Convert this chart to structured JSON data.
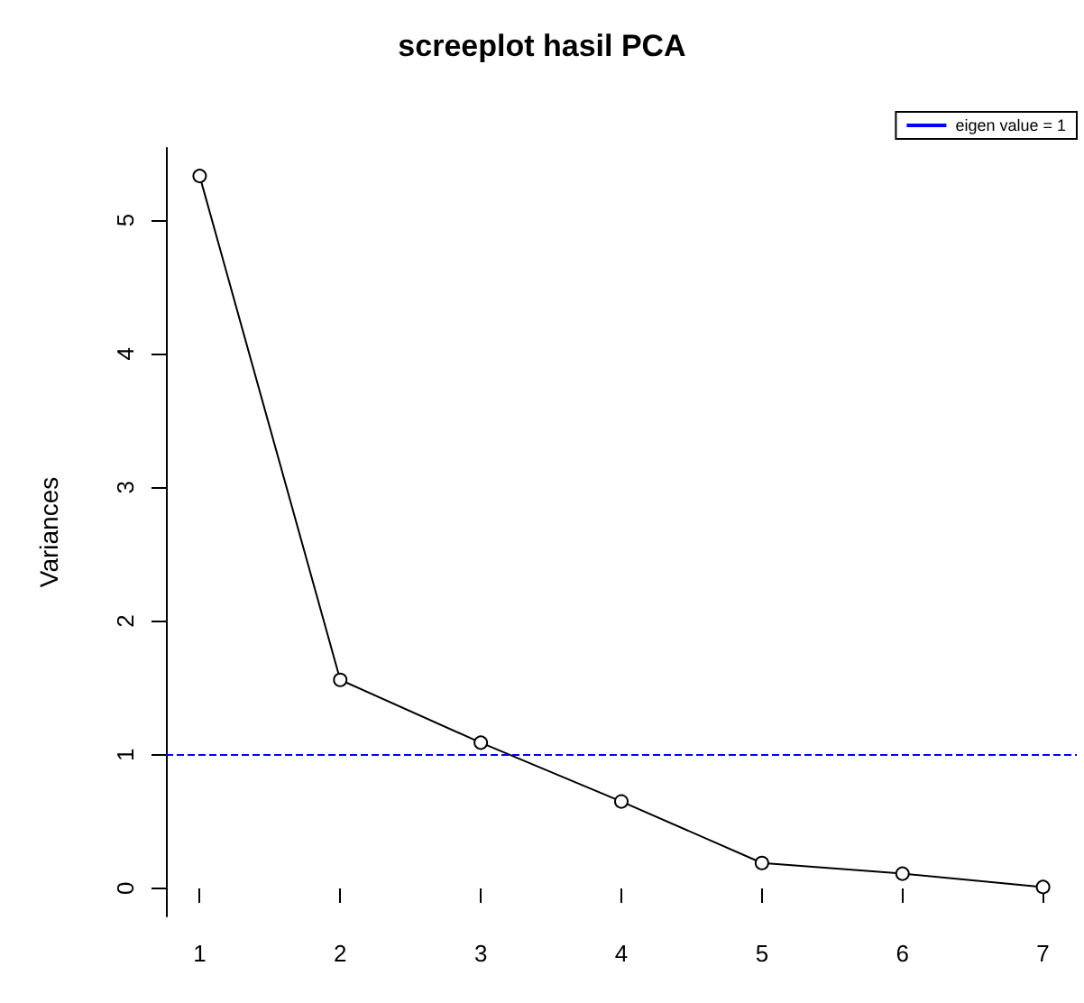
{
  "chart_data": {
    "type": "line",
    "title": "screeplot hasil PCA",
    "ylabel": "Variances",
    "x": [
      1,
      2,
      3,
      4,
      5,
      6,
      7
    ],
    "series": [
      {
        "color": "#000000",
        "values": [
          5.33,
          1.56,
          1.09,
          0.65,
          0.19,
          0.11,
          0.01
        ]
      }
    ],
    "xlim": [
      0.76,
      7.24
    ],
    "xticks": [
      1,
      2,
      3,
      4,
      5,
      6,
      7
    ],
    "ylim": [
      -0.21,
      5.54
    ],
    "yticks": [
      0,
      1,
      2,
      3,
      4,
      5
    ],
    "ref_lines": [
      {
        "axis": "y",
        "value": 1,
        "label": "eigen value = 1",
        "color": "#0000ff",
        "line_style": "dashed"
      }
    ],
    "marker": "circle",
    "line_style": "solid",
    "grid": false,
    "legend": "top right"
  }
}
